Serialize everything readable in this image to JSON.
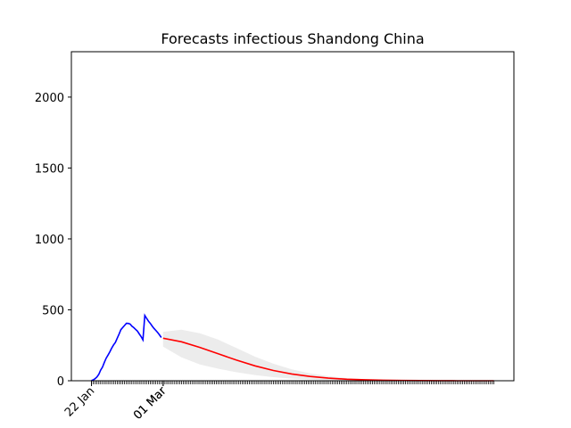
{
  "chart_data": {
    "type": "line",
    "title": "Forecasts infectious Shandong China",
    "xlabel": "",
    "ylabel": "",
    "ylim": [
      0,
      2320
    ],
    "yticks": [
      0,
      500,
      1000,
      1500,
      2000
    ],
    "x_date_ticks": [
      {
        "date": "2020-01-22",
        "label": "22 Jan"
      },
      {
        "date": "2020-03-01",
        "label": "01 Mar"
      },
      {
        "date": "2020-03-01",
        "label": "01 Mar"
      }
    ],
    "series": [
      {
        "role": "observed",
        "color": "#0000ff",
        "dates": [
          "2020-01-22",
          "2020-01-23",
          "2020-01-24",
          "2020-01-25",
          "2020-01-26",
          "2020-01-27",
          "2020-01-28",
          "2020-01-29",
          "2020-01-30",
          "2020-01-31",
          "2020-02-01",
          "2020-02-02",
          "2020-02-03",
          "2020-02-04",
          "2020-02-05",
          "2020-02-06",
          "2020-02-07",
          "2020-02-08",
          "2020-02-09",
          "2020-02-10",
          "2020-02-11",
          "2020-02-12",
          "2020-02-13",
          "2020-02-14",
          "2020-02-15",
          "2020-02-16",
          "2020-02-17",
          "2020-02-18",
          "2020-02-19",
          "2020-02-20",
          "2020-02-21",
          "2020-02-22",
          "2020-02-23",
          "2020-02-24",
          "2020-02-25",
          "2020-02-26",
          "2020-02-27",
          "2020-02-28",
          "2020-02-29"
        ],
        "values": [
          2,
          6,
          15,
          27,
          46,
          75,
          96,
          130,
          159,
          181,
          204,
          230,
          253,
          270,
          300,
          328,
          360,
          375,
          390,
          405,
          404,
          400,
          385,
          375,
          362,
          350,
          330,
          312,
          288,
          460,
          440,
          420,
          405,
          386,
          370,
          355,
          340,
          324,
          305
        ]
      },
      {
        "role": "forecast",
        "color": "#ff0000",
        "dates": [
          "2020-03-01",
          "2020-03-11",
          "2020-03-21",
          "2020-03-31",
          "2020-04-10",
          "2020-04-20",
          "2020-04-30",
          "2020-05-10",
          "2020-05-20",
          "2020-05-30",
          "2020-06-09",
          "2020-06-19",
          "2020-06-29",
          "2020-07-09",
          "2020-07-19",
          "2020-07-29",
          "2020-08-08",
          "2020-08-18",
          "2020-08-28"
        ],
        "values": [
          300,
          275,
          235,
          190,
          145,
          105,
          72,
          48,
          30,
          18,
          11,
          7,
          4,
          2,
          1,
          0.5,
          0.3,
          0.1,
          0
        ]
      }
    ],
    "band": {
      "color": "#ececec",
      "dates": [
        "2020-03-01",
        "2020-03-11",
        "2020-03-21",
        "2020-03-31",
        "2020-04-10",
        "2020-04-20",
        "2020-04-30",
        "2020-05-10",
        "2020-05-20",
        "2020-05-30",
        "2020-06-09",
        "2020-06-19",
        "2020-06-29",
        "2020-07-09",
        "2020-07-19",
        "2020-07-29",
        "2020-08-08",
        "2020-08-18",
        "2020-08-28"
      ],
      "upper": [
        345,
        360,
        335,
        290,
        230,
        170,
        120,
        80,
        52,
        32,
        19,
        11,
        6,
        3,
        1.5,
        0.8,
        0.4,
        0.2,
        0.1
      ],
      "lower": [
        240,
        165,
        115,
        85,
        60,
        40,
        25,
        15,
        9,
        5,
        3,
        1.5,
        0.8,
        0.4,
        0.2,
        0.1,
        0,
        0,
        0
      ]
    }
  }
}
